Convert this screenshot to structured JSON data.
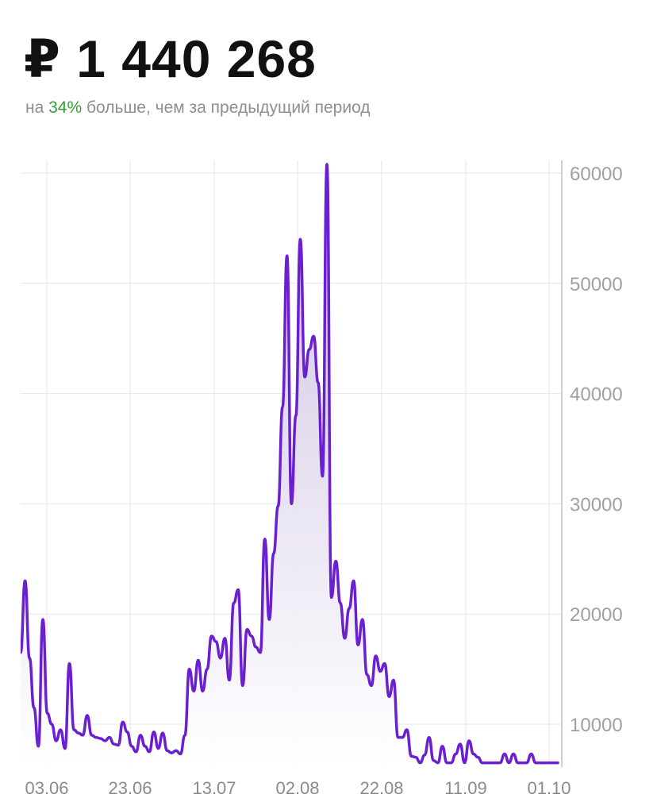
{
  "header": {
    "total": "₽ 1 440 268",
    "comparison_prefix": "на",
    "comparison_percent": "34%",
    "comparison_suffix": "больше, чем за предыдущий период"
  },
  "colors": {
    "line": "#6a1fd1",
    "fill_top": "#c9bde0",
    "grid": "#e6e6e6",
    "positive": "#3a9d35"
  },
  "chart_data": {
    "type": "area",
    "ylabel": "",
    "xlabel": "",
    "ylim": [
      6000,
      62000
    ],
    "y_ticks": [
      10000,
      20000,
      30000,
      40000,
      50000,
      60000
    ],
    "y_tick_labels": [
      "10000",
      "20000",
      "30000",
      "40000",
      "50000",
      "60000"
    ],
    "x_ticks": [
      "03.06",
      "23.06",
      "13.07",
      "02.08",
      "22.08",
      "11.09",
      "01.10"
    ],
    "grid": true,
    "series": [
      {
        "values": [
          16500,
          23000,
          16000,
          11500,
          8000,
          19500,
          11000,
          10000,
          8500,
          9500,
          7800,
          15500,
          9500,
          9200,
          9000,
          10800,
          9000,
          8800,
          8700,
          8500,
          8800,
          8200,
          8100,
          10200,
          9300,
          8000,
          7500,
          9000,
          8000,
          7500,
          9300,
          7800,
          9200,
          7600,
          7400,
          7600,
          7300,
          9000,
          15000,
          13000,
          15800,
          13000,
          15000,
          18000,
          17500,
          16000,
          17800,
          14000,
          21000,
          22200,
          13500,
          18600,
          18000,
          17000,
          16500,
          26800,
          19500,
          25500,
          29800,
          38800,
          52500,
          30000,
          38000,
          54000,
          41500,
          44000,
          45200,
          41000,
          32500,
          60800,
          21500,
          24800,
          21000,
          17800,
          20500,
          23000,
          17200,
          19500,
          14500,
          13500,
          16200,
          14800,
          15500,
          12500,
          14000,
          8800,
          8800,
          9500,
          7100,
          7000,
          6500,
          7200,
          8800,
          6700,
          6500,
          8000,
          6500,
          6500,
          7300,
          8200,
          6500,
          8500,
          7300,
          7000,
          6500,
          6500,
          6500,
          6500,
          6500,
          7300,
          6500,
          7300,
          6500,
          6500,
          6500,
          7300,
          6500,
          6500,
          6500,
          6500,
          6500,
          6500
        ],
        "days_per_step": 0.8
      }
    ]
  }
}
